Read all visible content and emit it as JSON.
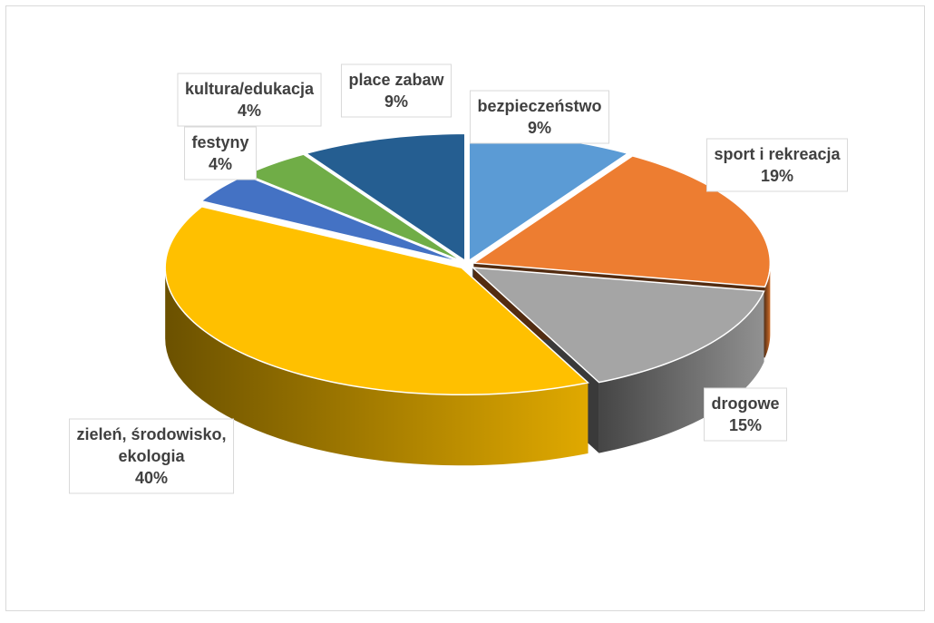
{
  "chart_data": {
    "type": "pie",
    "style": "3d-exploded",
    "categories": [
      "bezpieczeństwo",
      "sport i rekreacja",
      "drogowe",
      "zieleń, środowisko, ekologia",
      "festyny",
      "kultura/edukacja",
      "place zabaw"
    ],
    "values": [
      9,
      19,
      15,
      40,
      4,
      4,
      9
    ],
    "data_labels": [
      [
        "bezpieczeństwo",
        "9%"
      ],
      [
        "sport i rekreacja",
        "19%"
      ],
      [
        "drogowe",
        "15%"
      ],
      [
        "zieleń, środowisko,",
        "ekologia",
        "40%"
      ],
      [
        "festyny",
        "4%"
      ],
      [
        "kultura/edukacja",
        "4%"
      ],
      [
        "place zabaw",
        "9%"
      ]
    ],
    "colors": [
      "#5b9bd5",
      "#ed7d31",
      "#a5a5a5",
      "#ffc000",
      "#4472c4",
      "#70ad47",
      "#255e91"
    ],
    "legend": "none"
  }
}
